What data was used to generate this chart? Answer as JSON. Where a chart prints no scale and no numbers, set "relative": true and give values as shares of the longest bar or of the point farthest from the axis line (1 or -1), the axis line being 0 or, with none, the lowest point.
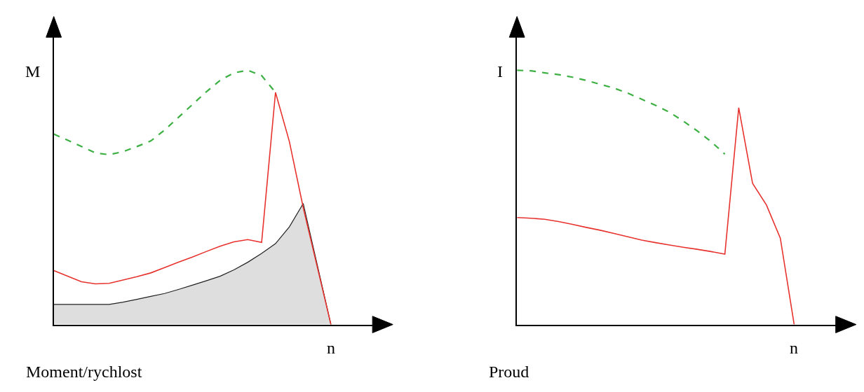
{
  "chart_data": [
    {
      "type": "line",
      "relative": true,
      "title": "Moment/rychlost",
      "xlabel": "n",
      "ylabel": "M",
      "categories": [
        null,
        null,
        null,
        null,
        null,
        null,
        null,
        null,
        null,
        null,
        null,
        null,
        null,
        null,
        null,
        null,
        null,
        null,
        null,
        null,
        null,
        null,
        null,
        null
      ],
      "series": [
        {
          "type": "area",
          "color": "#dedede",
          "values": [
            0.079,
            0.079,
            0.079,
            0.079,
            0.079,
            0.088,
            0.099,
            0.111,
            0.122,
            0.138,
            0.155,
            0.172,
            0.19,
            0.215,
            0.245,
            0.28,
            0.318,
            0.384,
            0.476,
            0.238,
            0,
            null,
            null,
            null
          ]
        },
        {
          "color": "#3cb043",
          "line_style": "dashed",
          "values": [
            0.749,
            0.725,
            0.7,
            0.675,
            0.668,
            0.68,
            0.7,
            0.722,
            0.765,
            0.815,
            0.865,
            0.915,
            0.96,
            0.99,
            1.0,
            0.979,
            0.913,
            null,
            null,
            null,
            null,
            null,
            null,
            null
          ]
        },
        {
          "color": "#e8322e",
          "line_style": "solid",
          "values": [
            0.212,
            0.19,
            0.168,
            0.16,
            0.162,
            0.175,
            0.188,
            0.203,
            0.224,
            0.245,
            0.265,
            0.287,
            0.308,
            0.325,
            0.334,
            0.323,
            0.913,
            0.72,
            0.46,
            0.23,
            0,
            null,
            null,
            null
          ]
        }
      ]
    },
    {
      "type": "line",
      "relative": true,
      "title": "Proud",
      "xlabel": "n",
      "ylabel": "I",
      "categories": [
        null,
        null,
        null,
        null,
        null,
        null,
        null,
        null,
        null,
        null,
        null,
        null,
        null,
        null,
        null,
        null,
        null,
        null,
        null,
        null,
        null,
        null,
        null,
        null
      ],
      "series": [
        {
          "color": "#3cb043",
          "line_style": "dashed",
          "values": [
            1.0,
            0.998,
            0.99,
            0.983,
            0.973,
            0.96,
            0.945,
            0.93,
            0.91,
            0.886,
            0.862,
            0.835,
            0.8,
            0.762,
            0.72,
            0.67,
            null,
            null,
            null,
            null,
            null,
            null,
            null,
            null
          ]
        },
        {
          "color": "#e8322e",
          "line_style": "solid",
          "values": [
            0.421,
            0.418,
            0.414,
            0.405,
            0.394,
            0.382,
            0.371,
            0.358,
            0.345,
            0.332,
            0.322,
            0.313,
            0.304,
            0.296,
            0.287,
            0.277,
            0.853,
            0.555,
            0.47,
            0.34,
            0,
            null,
            null,
            null
          ]
        }
      ]
    }
  ]
}
